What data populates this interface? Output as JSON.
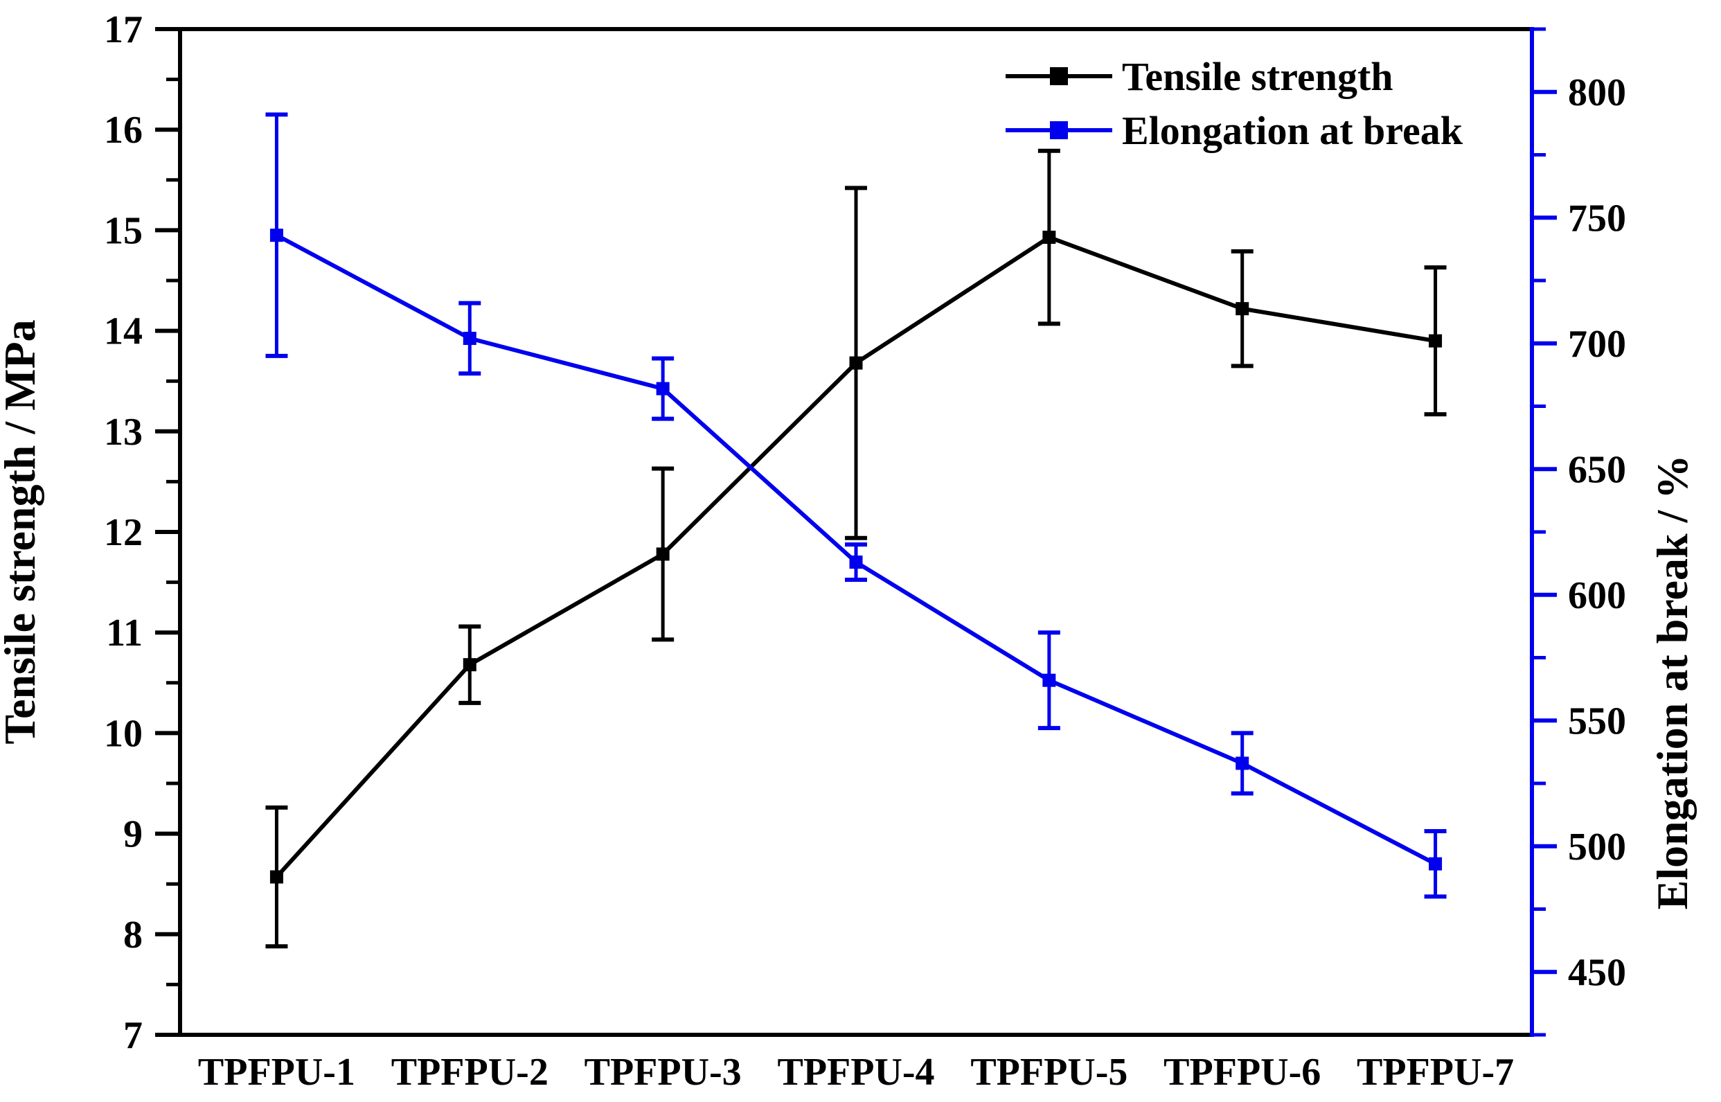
{
  "chart_data": {
    "type": "line",
    "title": "",
    "categories": [
      "TPFPU-1",
      "TPFPU-2",
      "TPFPU-3",
      "TPFPU-4",
      "TPFPU-5",
      "TPFPU-6",
      "TPFPU-7"
    ],
    "series": [
      {
        "name": "Tensile strength",
        "color": "#000000",
        "axis": "left",
        "marker": "square",
        "values": [
          8.57,
          10.68,
          11.78,
          13.68,
          14.93,
          14.22,
          13.9
        ],
        "errors": [
          0.69,
          0.38,
          0.85,
          1.74,
          0.86,
          0.57,
          0.73
        ]
      },
      {
        "name": "Elongation at break",
        "color": "#0000EE",
        "axis": "right",
        "marker": "square",
        "values": [
          743,
          702,
          682,
          613,
          566,
          533,
          493
        ],
        "errors": [
          48,
          14,
          12,
          7,
          19,
          12,
          13
        ]
      }
    ],
    "left_axis": {
      "label": "Tensile strength / MPa",
      "color": "#000000",
      "min": 7,
      "max": 17,
      "ticks": [
        "7",
        "8",
        "9",
        "10",
        "11",
        "12",
        "13",
        "14",
        "15",
        "16",
        "17"
      ],
      "minor_step": 0.5
    },
    "right_axis": {
      "label": "Elongation at break / %",
      "color": "#0000EE",
      "min": 425,
      "max": 825,
      "ticks": [
        "450",
        "500",
        "550",
        "600",
        "650",
        "700",
        "750",
        "800"
      ],
      "minor_step": 25
    },
    "legend": {
      "position": "top-right-inside",
      "entries": [
        "Tensile strength",
        "Elongation at break"
      ]
    },
    "grid": false,
    "background": "#ffffff"
  }
}
